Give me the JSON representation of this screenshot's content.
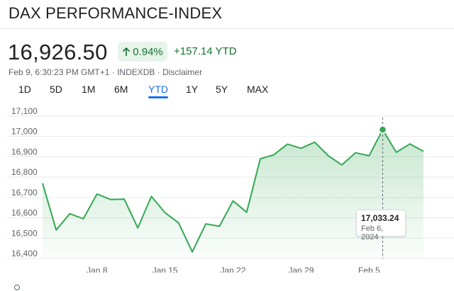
{
  "header": {
    "title": "DAX PERFORMANCE-INDEX",
    "price": "16,926.50",
    "change_pct": "0.94%",
    "change_abs": "+157.14 YTD",
    "meta": "Feb 9, 6:30:23 PM GMT+1 · INDEXDB · Disclaimer"
  },
  "colors": {
    "line": "#34a853",
    "positive_text": "#137333",
    "positive_bg": "#e6f4ea",
    "active_tab": "#1a73e8"
  },
  "tabs": [
    {
      "label": "1D",
      "active": false
    },
    {
      "label": "5D",
      "active": false
    },
    {
      "label": "1M",
      "active": false
    },
    {
      "label": "6M",
      "active": false
    },
    {
      "label": "YTD",
      "active": true
    },
    {
      "label": "1Y",
      "active": false
    },
    {
      "label": "5Y",
      "active": false
    },
    {
      "label": "MAX",
      "active": false
    }
  ],
  "tooltip": {
    "value": "17,033.24",
    "date": "Feb 6, 2024"
  },
  "chart_data": {
    "type": "area",
    "title": "",
    "xlabel": "",
    "ylabel": "",
    "ylim": [
      16400,
      17100
    ],
    "yticks": [
      17100,
      17000,
      16900,
      16800,
      16700,
      16600,
      16500,
      16400
    ],
    "ytick_labels": [
      "17,100",
      "17,000",
      "16,900",
      "16,800",
      "16,700",
      "16,600",
      "16,500",
      "16,400"
    ],
    "xticks": [
      "Jan 8",
      "Jan 15",
      "Jan 22",
      "Jan 29",
      "Feb 5"
    ],
    "grid": true,
    "x": [
      "Jan 2",
      "Jan 3",
      "Jan 4",
      "Jan 5",
      "Jan 8",
      "Jan 9",
      "Jan 10",
      "Jan 11",
      "Jan 12",
      "Jan 15",
      "Jan 16",
      "Jan 17",
      "Jan 18",
      "Jan 19",
      "Jan 22",
      "Jan 23",
      "Jan 24",
      "Jan 25",
      "Jan 26",
      "Jan 29",
      "Jan 30",
      "Jan 31",
      "Feb 1",
      "Feb 2",
      "Feb 5",
      "Feb 6",
      "Feb 7",
      "Feb 8",
      "Feb 9"
    ],
    "series": [
      {
        "values": [
          16770,
          16540,
          16620,
          16595,
          16717,
          16690,
          16692,
          16550,
          16705,
          16625,
          16575,
          16432,
          16570,
          16558,
          16683,
          16627,
          16890,
          16910,
          16962,
          16942,
          16972,
          16905,
          16860,
          16920,
          16905,
          17033,
          16922,
          16963,
          16927
        ]
      }
    ],
    "highlight": {
      "x": "Feb 6",
      "y": 17033.24
    }
  }
}
